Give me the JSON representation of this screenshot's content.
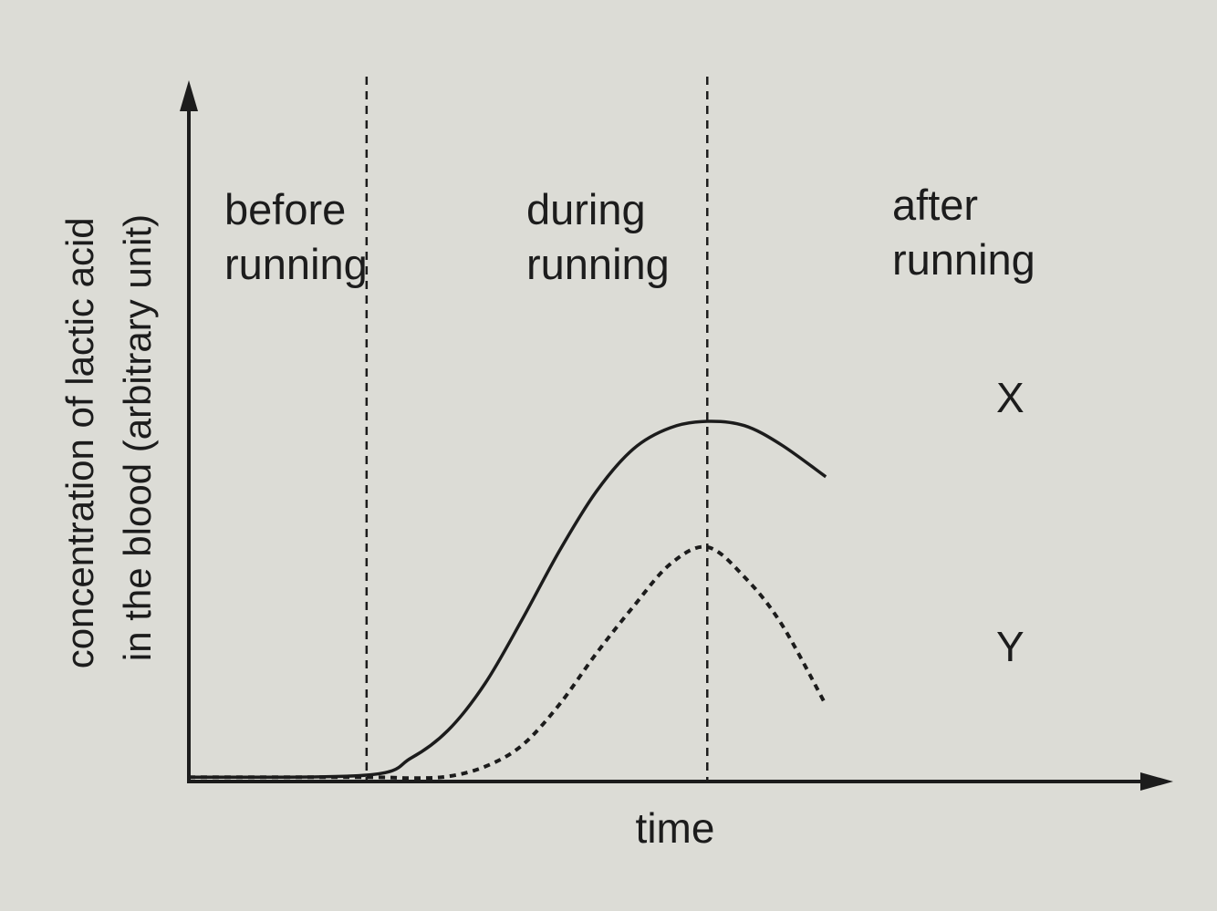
{
  "chart_data": {
    "type": "line",
    "title": "",
    "xlabel": "time",
    "ylabel": [
      "concentration of lactic acid",
      "in the blood (arbitrary unit)"
    ],
    "phases": [
      {
        "label": [
          "before",
          "running"
        ]
      },
      {
        "label": [
          "during",
          "running"
        ]
      },
      {
        "label": [
          "after",
          "running"
        ]
      }
    ],
    "phase_boundaries": [
      2.4,
      7.0
    ],
    "xlim": [
      0,
      11
    ],
    "ylim": [
      0,
      10
    ],
    "series": [
      {
        "name": "X",
        "style": "solid",
        "x": [
          0,
          2.4,
          3.0,
          3.5,
          4.0,
          4.5,
          5.0,
          5.5,
          6.0,
          6.5,
          7.0,
          7.5,
          8.0,
          8.6
        ],
        "y": [
          0.1,
          0.15,
          0.55,
          1.2,
          2.3,
          3.8,
          5.4,
          6.8,
          7.8,
          8.3,
          8.45,
          8.35,
          7.9,
          7.15
        ]
      },
      {
        "name": "Y",
        "style": "dashed",
        "x": [
          0,
          2.4,
          3.0,
          3.5,
          4.0,
          4.5,
          5.0,
          5.5,
          6.0,
          6.5,
          7.0,
          7.5,
          8.0,
          8.6
        ],
        "y": [
          0.1,
          0.1,
          0.08,
          0.12,
          0.35,
          0.85,
          1.8,
          3.0,
          4.1,
          5.1,
          5.5,
          4.8,
          3.7,
          1.8
        ]
      }
    ],
    "colors": {
      "ink": "#1c1c1c",
      "paper": "#dcdcd6"
    }
  }
}
